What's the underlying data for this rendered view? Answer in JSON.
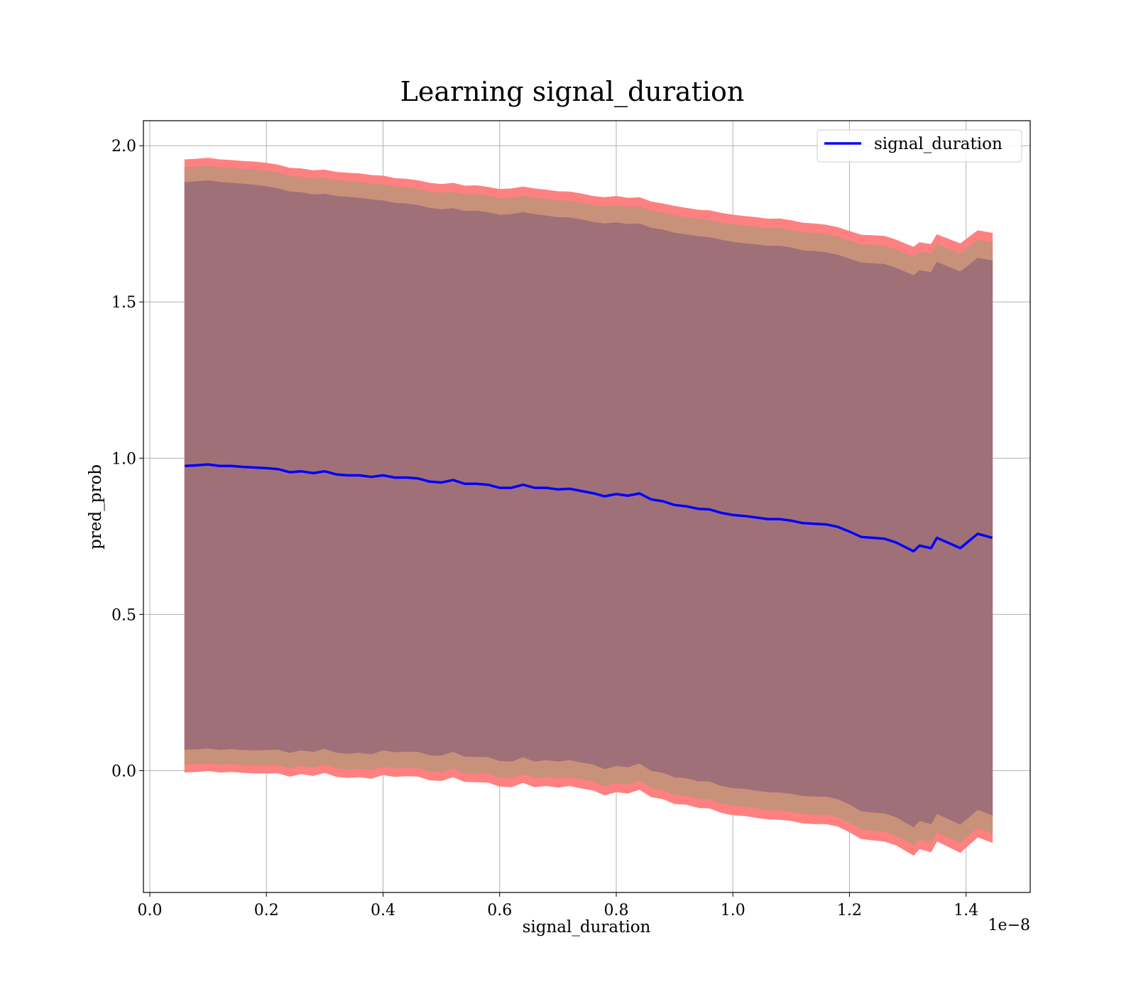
{
  "chart_data": {
    "type": "line",
    "title": "Learning signal_duration",
    "xlabel": "signal_duration",
    "ylabel": "pred_prob",
    "x_offset_label": "1e−8",
    "xlim": [
      -0.011,
      1.51
    ],
    "ylim": [
      -0.39,
      2.08
    ],
    "xticks": [
      0.0,
      0.2,
      0.4,
      0.6,
      0.8,
      1.0,
      1.2,
      1.4
    ],
    "xtick_labels": [
      "0.0",
      "0.2",
      "0.4",
      "0.6",
      "0.8",
      "1.0",
      "1.2",
      "1.4"
    ],
    "yticks": [
      0.0,
      0.5,
      1.0,
      1.5,
      2.0
    ],
    "ytick_labels": [
      "0.0",
      "0.5",
      "1.0",
      "1.5",
      "2.0"
    ],
    "grid": true,
    "legend": {
      "entries": [
        "signal_duration"
      ],
      "placement": "top-right"
    },
    "colors": {
      "line": "#0000ff",
      "band_outer": "#ff8080",
      "band_middle": "#c8917a",
      "band_inner": "#a07079",
      "grid": "#b0b0b0"
    },
    "series": [
      {
        "name": "signal_duration",
        "x": [
          0.06,
          0.08,
          0.1,
          0.12,
          0.14,
          0.16,
          0.18,
          0.2,
          0.22,
          0.24,
          0.26,
          0.28,
          0.3,
          0.32,
          0.34,
          0.36,
          0.38,
          0.4,
          0.42,
          0.44,
          0.46,
          0.48,
          0.5,
          0.52,
          0.54,
          0.56,
          0.58,
          0.6,
          0.62,
          0.64,
          0.66,
          0.68,
          0.7,
          0.72,
          0.74,
          0.76,
          0.78,
          0.8,
          0.82,
          0.84,
          0.86,
          0.88,
          0.9,
          0.92,
          0.94,
          0.96,
          0.98,
          1.0,
          1.02,
          1.04,
          1.06,
          1.08,
          1.1,
          1.12,
          1.14,
          1.16,
          1.18,
          1.2,
          1.22,
          1.24,
          1.26,
          1.28,
          1.31,
          1.32,
          1.34,
          1.35,
          1.39,
          1.42,
          1.445
        ],
        "values": [
          0.975,
          0.977,
          0.98,
          0.975,
          0.975,
          0.972,
          0.97,
          0.968,
          0.965,
          0.955,
          0.958,
          0.952,
          0.958,
          0.948,
          0.945,
          0.945,
          0.94,
          0.945,
          0.938,
          0.938,
          0.935,
          0.925,
          0.922,
          0.93,
          0.918,
          0.918,
          0.915,
          0.905,
          0.905,
          0.915,
          0.905,
          0.905,
          0.9,
          0.902,
          0.895,
          0.888,
          0.878,
          0.885,
          0.88,
          0.887,
          0.868,
          0.862,
          0.85,
          0.846,
          0.838,
          0.836,
          0.825,
          0.818,
          0.815,
          0.81,
          0.805,
          0.805,
          0.8,
          0.792,
          0.79,
          0.788,
          0.78,
          0.765,
          0.748,
          0.745,
          0.742,
          0.73,
          0.702,
          0.72,
          0.712,
          0.745,
          0.712,
          0.758,
          0.745
        ],
        "band_outer_upper": [
          1.955,
          1.957,
          1.96,
          1.955,
          1.953,
          1.95,
          1.948,
          1.944,
          1.938,
          1.928,
          1.926,
          1.92,
          1.922,
          1.915,
          1.912,
          1.91,
          1.905,
          1.903,
          1.895,
          1.893,
          1.888,
          1.88,
          1.876,
          1.88,
          1.871,
          1.872,
          1.867,
          1.86,
          1.862,
          1.868,
          1.862,
          1.858,
          1.853,
          1.852,
          1.846,
          1.838,
          1.834,
          1.838,
          1.832,
          1.834,
          1.82,
          1.814,
          1.806,
          1.8,
          1.794,
          1.792,
          1.784,
          1.778,
          1.774,
          1.77,
          1.765,
          1.766,
          1.76,
          1.752,
          1.75,
          1.746,
          1.738,
          1.726,
          1.714,
          1.712,
          1.71,
          1.698,
          1.675,
          1.69,
          1.684,
          1.715,
          1.686,
          1.728,
          1.72
        ],
        "band_middle_upper": [
          1.93,
          1.932,
          1.935,
          1.93,
          1.928,
          1.925,
          1.923,
          1.918,
          1.912,
          1.902,
          1.9,
          1.894,
          1.896,
          1.888,
          1.885,
          1.883,
          1.878,
          1.876,
          1.868,
          1.866,
          1.861,
          1.852,
          1.848,
          1.852,
          1.843,
          1.844,
          1.839,
          1.831,
          1.833,
          1.839,
          1.833,
          1.829,
          1.824,
          1.823,
          1.817,
          1.809,
          1.805,
          1.809,
          1.803,
          1.805,
          1.791,
          1.785,
          1.776,
          1.771,
          1.765,
          1.762,
          1.754,
          1.748,
          1.744,
          1.74,
          1.735,
          1.736,
          1.73,
          1.722,
          1.72,
          1.716,
          1.708,
          1.695,
          1.683,
          1.681,
          1.679,
          1.667,
          1.643,
          1.659,
          1.653,
          1.685,
          1.655,
          1.698,
          1.69
        ],
        "band_inner_upper": [
          1.882,
          1.885,
          1.888,
          1.883,
          1.88,
          1.877,
          1.874,
          1.869,
          1.862,
          1.852,
          1.85,
          1.843,
          1.845,
          1.838,
          1.835,
          1.832,
          1.827,
          1.824,
          1.816,
          1.814,
          1.809,
          1.8,
          1.795,
          1.799,
          1.79,
          1.791,
          1.786,
          1.778,
          1.78,
          1.786,
          1.78,
          1.775,
          1.77,
          1.769,
          1.763,
          1.755,
          1.75,
          1.754,
          1.748,
          1.75,
          1.736,
          1.73,
          1.72,
          1.715,
          1.709,
          1.706,
          1.698,
          1.691,
          1.687,
          1.683,
          1.678,
          1.679,
          1.673,
          1.664,
          1.662,
          1.658,
          1.65,
          1.637,
          1.625,
          1.623,
          1.62,
          1.608,
          1.584,
          1.6,
          1.594,
          1.627,
          1.596,
          1.64,
          1.632
        ]
      }
    ]
  }
}
